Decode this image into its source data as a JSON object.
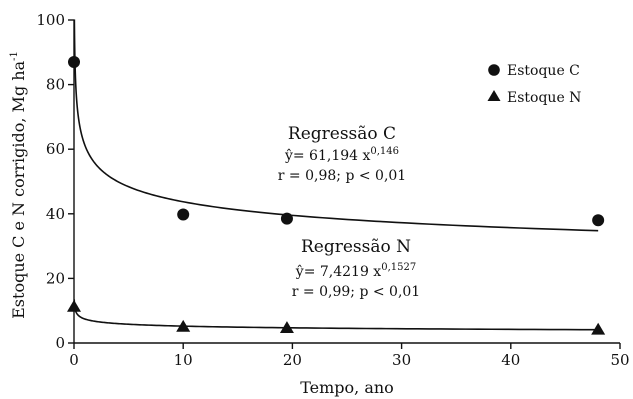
{
  "chart_data": {
    "type": "scatter",
    "xlabel": "Tempo, ano",
    "ylabel_main": "Estoque C e N corrigido, Mg ha",
    "ylabel_sup": "-1",
    "xlim": [
      0,
      50
    ],
    "ylim": [
      0,
      100
    ],
    "x_ticks": [
      "0",
      "10",
      "20",
      "30",
      "40",
      "50"
    ],
    "y_ticks": [
      "0",
      "20",
      "40",
      "60",
      "80",
      "100"
    ],
    "legend_position": "top-right",
    "series": [
      {
        "name": "Estoque C",
        "marker": "circle",
        "points": [
          {
            "x": 0,
            "y": 87
          },
          {
            "x": 10,
            "y": 39.8
          },
          {
            "x": 19.5,
            "y": 38.5
          },
          {
            "x": 48,
            "y": 38
          }
        ],
        "fit": {
          "a": 61.194,
          "b": -0.146
        }
      },
      {
        "name": "Estoque N",
        "marker": "triangle",
        "points": [
          {
            "x": 0,
            "y": 11.2
          },
          {
            "x": 10,
            "y": 5
          },
          {
            "x": 19.5,
            "y": 4.6
          },
          {
            "x": 48,
            "y": 4.1
          }
        ],
        "fit": {
          "a": 7.4219,
          "b": -0.1527
        }
      }
    ],
    "annotations": [
      {
        "title": "Regressão C",
        "eq_prefix": "ŷ= 61,194 x",
        "eq_exp": "0,146",
        "stats": "r = 0,98; p < 0,01"
      },
      {
        "title": "Regressão N",
        "eq_prefix": "ŷ= 7,4219 x",
        "eq_exp": "0,1527",
        "stats": "r = 0,99; p < 0,01"
      }
    ]
  }
}
